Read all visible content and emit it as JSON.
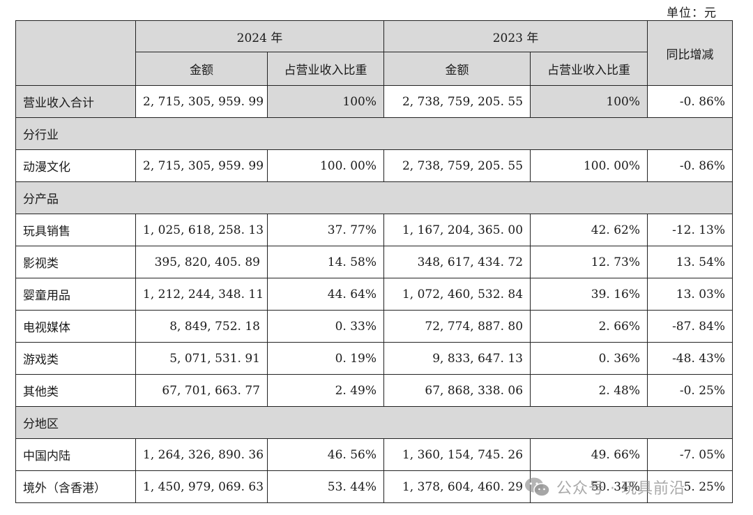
{
  "unit_label": "单位：元",
  "headers": {
    "year_2024": "2024 年",
    "year_2023": "2023 年",
    "yoy": "同比增减",
    "amount": "金额",
    "share": "占营业收入比重"
  },
  "total_row": {
    "label": "营业收入合计",
    "amt_2024": "2, 715, 305, 959. 99",
    "share_2024": "100%",
    "amt_2023": "2, 738, 759, 205. 55",
    "share_2023": "100%",
    "yoy": "-0. 86%"
  },
  "sections": {
    "industry": "分行业",
    "product": "分产品",
    "region": "分地区"
  },
  "industry_rows": [
    {
      "label": "动漫文化",
      "amt_2024": "2, 715, 305, 959. 99",
      "share_2024": "100. 00%",
      "amt_2023": "2, 738, 759, 205. 55",
      "share_2023": "100. 00%",
      "yoy": "-0. 86%"
    }
  ],
  "product_rows": [
    {
      "label": "玩具销售",
      "amt_2024": "1, 025, 618, 258. 13",
      "share_2024": "37. 77%",
      "amt_2023": "1, 167, 204, 365. 00",
      "share_2023": "42. 62%",
      "yoy": "-12. 13%"
    },
    {
      "label": "影视类",
      "amt_2024": "395, 820, 405. 89",
      "share_2024": "14. 58%",
      "amt_2023": "348, 617, 434. 72",
      "share_2023": "12. 73%",
      "yoy": "13. 54%"
    },
    {
      "label": "婴童用品",
      "amt_2024": "1, 212, 244, 348. 11",
      "share_2024": "44. 64%",
      "amt_2023": "1, 072, 460, 532. 84",
      "share_2023": "39. 16%",
      "yoy": "13. 03%"
    },
    {
      "label": "电视媒体",
      "amt_2024": "8, 849, 752. 18",
      "share_2024": "0. 33%",
      "amt_2023": "72, 774, 887. 80",
      "share_2023": "2. 66%",
      "yoy": "-87. 84%"
    },
    {
      "label": "游戏类",
      "amt_2024": "5, 071, 531. 91",
      "share_2024": "0. 19%",
      "amt_2023": "9, 833, 647. 13",
      "share_2023": "0. 36%",
      "yoy": "-48. 43%"
    },
    {
      "label": "其他类",
      "amt_2024": "67, 701, 663. 77",
      "share_2024": "2. 49%",
      "amt_2023": "67, 868, 338. 06",
      "share_2023": "2. 48%",
      "yoy": "-0. 25%"
    }
  ],
  "region_rows": [
    {
      "label": "中国内陆",
      "amt_2024": "1, 264, 326, 890. 36",
      "share_2024": "46. 56%",
      "amt_2023": "1, 360, 154, 745. 26",
      "share_2023": "49. 66%",
      "yoy": "-7. 05%"
    },
    {
      "label": "境外（含香港）",
      "amt_2024": "1, 450, 979, 069. 63",
      "share_2024": "53. 44%",
      "amt_2023": "1, 378, 604, 460. 29",
      "share_2023": "50. 34%",
      "yoy": "5. 25%"
    }
  ],
  "watermark": {
    "text": "公众号 · 玩具前沿",
    "icon": "wechat-icon"
  }
}
